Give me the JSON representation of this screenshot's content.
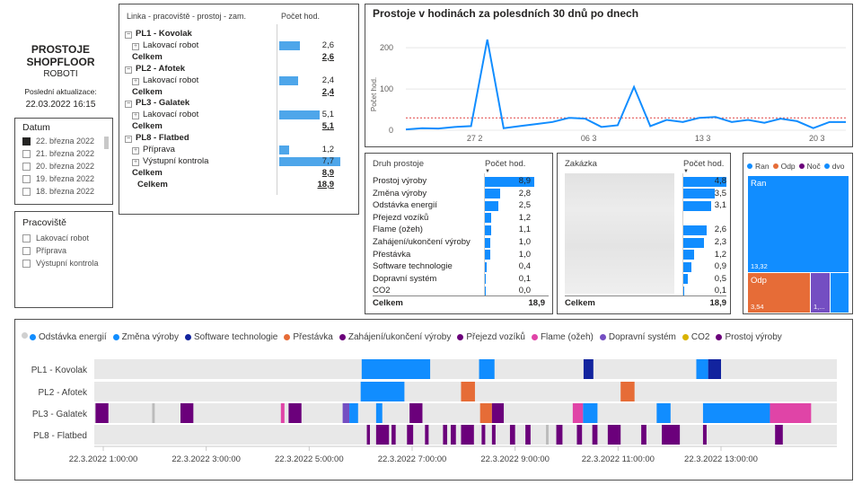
{
  "title": {
    "line1": "PROSTOJE",
    "line2": "SHOPFLOOR",
    "line3": "ROBOTI",
    "updated_label": "Poslední aktualizace:",
    "updated_value": "22.03.2022 16:15"
  },
  "date_slicer": {
    "title": "Datum",
    "items": [
      {
        "label": "22. března 2022",
        "checked": true
      },
      {
        "label": "21. března 2022",
        "checked": false
      },
      {
        "label": "20. března 2022",
        "checked": false
      },
      {
        "label": "19. března 2022",
        "checked": false
      },
      {
        "label": "18. března 2022",
        "checked": false
      }
    ]
  },
  "workplace_slicer": {
    "title": "Pracoviště",
    "items": [
      "Lakovací robot",
      "Příprava",
      "Výstupní kontrola"
    ]
  },
  "matrix": {
    "col1": "Linka - pracoviště - prostoj - zam.",
    "col2": "Počet hod.",
    "rows": [
      {
        "label": "PL1 - Kovolak",
        "kind": "line",
        "value": ""
      },
      {
        "label": "Lakovací robot",
        "kind": "item",
        "value": "2,6",
        "num": 2.6
      },
      {
        "label": "Celkem",
        "kind": "total",
        "value": "2,6"
      },
      {
        "label": "PL2 - Afotek",
        "kind": "line",
        "value": ""
      },
      {
        "label": "Lakovací robot",
        "kind": "item",
        "value": "2,4",
        "num": 2.4
      },
      {
        "label": "Celkem",
        "kind": "total",
        "value": "2,4"
      },
      {
        "label": "PL3 - Galatek",
        "kind": "line",
        "value": ""
      },
      {
        "label": "Lakovací robot",
        "kind": "item",
        "value": "5,1",
        "num": 5.1
      },
      {
        "label": "Celkem",
        "kind": "total",
        "value": "5,1"
      },
      {
        "label": "PL8 - Flatbed",
        "kind": "line",
        "value": ""
      },
      {
        "label": "Příprava",
        "kind": "item",
        "value": "1,2",
        "num": 1.2
      },
      {
        "label": "Výstupní kontrola",
        "kind": "item",
        "value": "7,7",
        "num": 7.7
      },
      {
        "label": "Celkem",
        "kind": "total",
        "value": "8,9"
      },
      {
        "label": "Celkem",
        "kind": "grand",
        "value": "18,9"
      }
    ]
  },
  "line_chart": {
    "title": "Prostoje v hodinách za polesdních 30 dnů po dnech",
    "ylabel": "Počet hod.",
    "yticks": [
      "200",
      "100",
      "0"
    ],
    "xticks": [
      "27 2",
      "06 3",
      "13 3",
      "20 3"
    ]
  },
  "chart_data": {
    "type": "line",
    "title": "Prostoje v hodinách za polesdních 30 dnů po dnech",
    "ylabel": "Počet hod.",
    "ylim": [
      0,
      220
    ],
    "x": [
      "23.2",
      "24.2",
      "25.2",
      "26.2",
      "27.2",
      "28.2",
      "1.3",
      "2.3",
      "3.3",
      "4.3",
      "5.3",
      "6.3",
      "7.3",
      "8.3",
      "9.3",
      "10.3",
      "11.3",
      "12.3",
      "13.3",
      "14.3",
      "15.3",
      "16.3",
      "17.3",
      "18.3",
      "19.3",
      "20.3",
      "21.3",
      "22.3"
    ],
    "series": [
      {
        "values": [
          2,
          5,
          4,
          8,
          10,
          220,
          5,
          10,
          15,
          20,
          30,
          28,
          8,
          12,
          105,
          10,
          25,
          20,
          30,
          32,
          20,
          25,
          18,
          28,
          22,
          5,
          20,
          20
        ]
      }
    ],
    "average": 30,
    "grid": true
  },
  "downtime_table": {
    "col1": "Druh prostoje",
    "col2": "Počet hod.",
    "rows": [
      {
        "label": "Prostoj výroby",
        "value": "8,9",
        "num": 8.9
      },
      {
        "label": "Změna výroby",
        "value": "2,8",
        "num": 2.8
      },
      {
        "label": "Odstávka energií",
        "value": "2,5",
        "num": 2.5
      },
      {
        "label": "Přejezd vozíků",
        "value": "1,2",
        "num": 1.2
      },
      {
        "label": "Flame (ožeh)",
        "value": "1,1",
        "num": 1.1
      },
      {
        "label": "Zahájení/ukončení výroby",
        "value": "1,0",
        "num": 1.0
      },
      {
        "label": "Přestávka",
        "value": "1,0",
        "num": 1.0
      },
      {
        "label": "Software technologie",
        "value": "0,4",
        "num": 0.4
      },
      {
        "label": "Dopravní systém",
        "value": "0,1",
        "num": 0.1
      },
      {
        "label": "CO2",
        "value": "0,0",
        "num": 0.0
      }
    ],
    "total_label": "Celkem",
    "total_value": "18,9"
  },
  "order_table": {
    "col1": "Zakázka",
    "col2": "Počet hod.",
    "rows": [
      {
        "value": "4,8",
        "num": 4.8
      },
      {
        "value": "3,5",
        "num": 3.5
      },
      {
        "value": "3,1",
        "num": 3.1
      },
      {
        "value": "",
        "num": 0
      },
      {
        "value": "2,6",
        "num": 2.6
      },
      {
        "value": "2,3",
        "num": 2.3
      },
      {
        "value": "1,2",
        "num": 1.2
      },
      {
        "value": "0,9",
        "num": 0.9
      },
      {
        "value": "0,5",
        "num": 0.5
      },
      {
        "value": "0,1",
        "num": 0.1
      }
    ],
    "total_label": "Celkem",
    "total_value": "18,9"
  },
  "treemap": {
    "legend": [
      {
        "label": "Ran",
        "color": "#118dff"
      },
      {
        "label": "Odp",
        "color": "#e66c37"
      },
      {
        "label": "Noč",
        "color": "#6b007b"
      },
      {
        "label": "dvo",
        "color": "#118dff"
      }
    ],
    "tiles": [
      {
        "label": "Ran",
        "value": "13,32",
        "color": "#118dff"
      },
      {
        "label": "Odp",
        "value": "3,54",
        "color": "#e66c37"
      },
      {
        "label": "",
        "value": "1,...",
        "color": "#744ec2"
      },
      {
        "label": "",
        "value": "",
        "color": "#118dff"
      }
    ]
  },
  "timeline": {
    "legend": [
      {
        "label": "Odstávka energií",
        "color": "#118dff"
      },
      {
        "label": "Změna výroby",
        "color": "#118dff"
      },
      {
        "label": "Software technologie",
        "color": "#12239e"
      },
      {
        "label": "Přestávka",
        "color": "#e66c37"
      },
      {
        "label": "Zahájení/ukončení výroby",
        "color": "#6b007b"
      },
      {
        "label": "Přejezd vozíků",
        "color": "#6b007b"
      },
      {
        "label": "Flame (ožeh)",
        "color": "#e044a7"
      },
      {
        "label": "Dopravní systém",
        "color": "#744ec2"
      },
      {
        "label": "CO2",
        "color": "#d9b300"
      },
      {
        "label": "Prostoj výroby",
        "color": "#6b007b"
      }
    ],
    "rows": [
      "PL1 - Kovolak",
      "PL2 - Afotek",
      "PL3 - Galatek",
      "PL8 - Flatbed"
    ],
    "xticks": [
      "22.3.2022 1:00:00",
      "22.3.2022 3:00:00",
      "22.3.2022 5:00:00",
      "22.3.2022 7:00:00",
      "22.3.2022 9:00:00",
      "22.3.2022 11:00:00",
      "22.3.2022 13:00:00"
    ],
    "x_start_hour": 1.0,
    "x_end_hour": 15.25,
    "segments": [
      {
        "row": 0,
        "start": 6.02,
        "end": 7.35,
        "color": "#118dff"
      },
      {
        "row": 0,
        "start": 8.3,
        "end": 8.6,
        "color": "#118dff"
      },
      {
        "row": 0,
        "start": 10.33,
        "end": 10.52,
        "color": "#12239e"
      },
      {
        "row": 0,
        "start": 12.52,
        "end": 12.75,
        "color": "#118dff"
      },
      {
        "row": 0,
        "start": 12.75,
        "end": 13.0,
        "color": "#12239e"
      },
      {
        "row": 1,
        "start": 6.0,
        "end": 6.85,
        "color": "#118dff"
      },
      {
        "row": 1,
        "start": 7.95,
        "end": 8.22,
        "color": "#e66c37"
      },
      {
        "row": 1,
        "start": 11.05,
        "end": 11.32,
        "color": "#e66c37"
      },
      {
        "row": 2,
        "start": 0.85,
        "end": 1.1,
        "color": "#6b007b"
      },
      {
        "row": 2,
        "start": 1.95,
        "end": 2.0,
        "color": "#bbbbbb"
      },
      {
        "row": 2,
        "start": 2.5,
        "end": 2.75,
        "color": "#6b007b"
      },
      {
        "row": 2,
        "start": 4.45,
        "end": 4.52,
        "color": "#e044a7"
      },
      {
        "row": 2,
        "start": 4.6,
        "end": 4.85,
        "color": "#6b007b"
      },
      {
        "row": 2,
        "start": 5.65,
        "end": 5.78,
        "color": "#744ec2"
      },
      {
        "row": 2,
        "start": 5.78,
        "end": 5.95,
        "color": "#118dff"
      },
      {
        "row": 2,
        "start": 6.3,
        "end": 6.42,
        "color": "#118dff"
      },
      {
        "row": 2,
        "start": 6.95,
        "end": 7.2,
        "color": "#6b007b"
      },
      {
        "row": 2,
        "start": 8.32,
        "end": 8.55,
        "color": "#e66c37"
      },
      {
        "row": 2,
        "start": 8.55,
        "end": 8.78,
        "color": "#6b007b"
      },
      {
        "row": 2,
        "start": 10.12,
        "end": 10.32,
        "color": "#e044a7"
      },
      {
        "row": 2,
        "start": 10.32,
        "end": 10.6,
        "color": "#118dff"
      },
      {
        "row": 2,
        "start": 11.75,
        "end": 12.02,
        "color": "#118dff"
      },
      {
        "row": 2,
        "start": 12.65,
        "end": 13.95,
        "color": "#118dff"
      },
      {
        "row": 2,
        "start": 13.95,
        "end": 14.75,
        "color": "#e044a7"
      },
      {
        "row": 3,
        "start": 6.12,
        "end": 6.18,
        "color": "#6b007b"
      },
      {
        "row": 3,
        "start": 6.3,
        "end": 6.55,
        "color": "#6b007b"
      },
      {
        "row": 3,
        "start": 6.6,
        "end": 6.68,
        "color": "#6b007b"
      },
      {
        "row": 3,
        "start": 6.9,
        "end": 7.02,
        "color": "#6b007b"
      },
      {
        "row": 3,
        "start": 7.25,
        "end": 7.32,
        "color": "#6b007b"
      },
      {
        "row": 3,
        "start": 7.6,
        "end": 7.68,
        "color": "#6b007b"
      },
      {
        "row": 3,
        "start": 7.75,
        "end": 7.85,
        "color": "#6b007b"
      },
      {
        "row": 3,
        "start": 7.95,
        "end": 8.2,
        "color": "#6b007b"
      },
      {
        "row": 3,
        "start": 8.35,
        "end": 8.42,
        "color": "#6b007b"
      },
      {
        "row": 3,
        "start": 8.55,
        "end": 8.62,
        "color": "#6b007b"
      },
      {
        "row": 3,
        "start": 8.9,
        "end": 9.0,
        "color": "#6b007b"
      },
      {
        "row": 3,
        "start": 9.2,
        "end": 9.3,
        "color": "#6b007b"
      },
      {
        "row": 3,
        "start": 9.6,
        "end": 9.65,
        "color": "#bbbbbb"
      },
      {
        "row": 3,
        "start": 9.8,
        "end": 9.92,
        "color": "#6b007b"
      },
      {
        "row": 3,
        "start": 10.2,
        "end": 10.3,
        "color": "#6b007b"
      },
      {
        "row": 3,
        "start": 10.5,
        "end": 10.6,
        "color": "#6b007b"
      },
      {
        "row": 3,
        "start": 10.8,
        "end": 11.05,
        "color": "#6b007b"
      },
      {
        "row": 3,
        "start": 11.45,
        "end": 11.55,
        "color": "#6b007b"
      },
      {
        "row": 3,
        "start": 11.85,
        "end": 12.2,
        "color": "#6b007b"
      },
      {
        "row": 3,
        "start": 12.65,
        "end": 12.72,
        "color": "#6b007b"
      },
      {
        "row": 3,
        "start": 14.05,
        "end": 14.2,
        "color": "#6b007b"
      }
    ]
  }
}
